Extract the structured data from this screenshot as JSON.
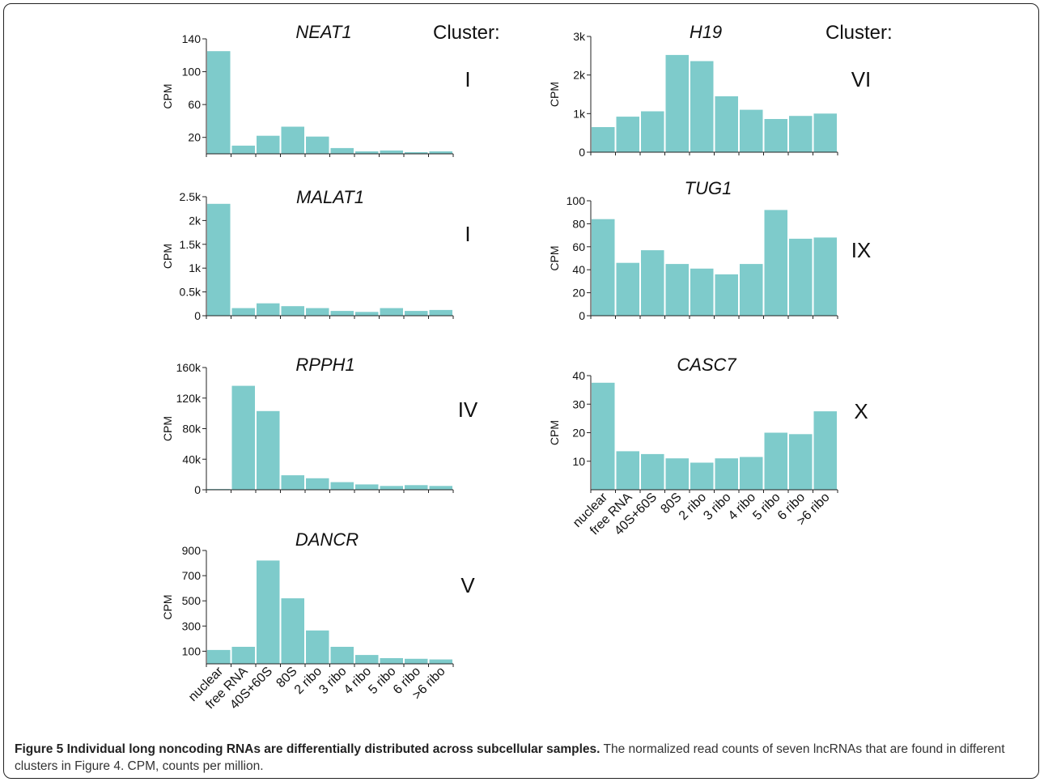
{
  "figure": {
    "cluster_header": "Cluster:",
    "y_axis_label": "CPM",
    "bar_color": "#7ecbcb",
    "categories": [
      "nuclear",
      "free RNA",
      "40S+60S",
      "80S",
      "2 ribo",
      "3 ribo",
      "4 ribo",
      "5 ribo",
      "6 ribo",
      ">6 ribo"
    ]
  },
  "chart_data": [
    {
      "type": "bar",
      "title": "NEAT1",
      "cluster": "I",
      "ylabel": "CPM",
      "ylim": [
        0,
        140
      ],
      "yticks": [
        20,
        60,
        100,
        140
      ],
      "ytick_labels": [
        "20",
        "60",
        "100",
        "140"
      ],
      "categories": [
        "nuclear",
        "free RNA",
        "40S+60S",
        "80S",
        "2 ribo",
        "3 ribo",
        "4 ribo",
        "5 ribo",
        "6 ribo",
        ">6 ribo"
      ],
      "values": [
        125,
        10,
        22,
        33,
        21,
        7,
        3,
        4,
        2,
        3
      ]
    },
    {
      "type": "bar",
      "title": "MALAT1",
      "cluster": "I",
      "ylabel": "CPM",
      "ylim": [
        0,
        2500
      ],
      "yticks": [
        0,
        500,
        1000,
        1500,
        2000,
        2500
      ],
      "ytick_labels": [
        "0",
        "0.5k",
        "1k",
        "1.5k",
        "2k",
        "2.5k"
      ],
      "categories": [
        "nuclear",
        "free RNA",
        "40S+60S",
        "80S",
        "2 ribo",
        "3 ribo",
        "4 ribo",
        "5 ribo",
        "6 ribo",
        ">6 ribo"
      ],
      "values": [
        2350,
        160,
        260,
        200,
        160,
        100,
        80,
        160,
        100,
        120
      ]
    },
    {
      "type": "bar",
      "title": "RPPH1",
      "cluster": "IV",
      "ylabel": "CPM",
      "ylim": [
        0,
        160000
      ],
      "yticks": [
        0,
        40000,
        80000,
        120000,
        160000
      ],
      "ytick_labels": [
        "0",
        "40k",
        "80k",
        "120k",
        "160k"
      ],
      "categories": [
        "nuclear",
        "free RNA",
        "40S+60S",
        "80S",
        "2 ribo",
        "3 ribo",
        "4 ribo",
        "5 ribo",
        "6 ribo",
        ">6 ribo"
      ],
      "values": [
        1000,
        136000,
        103000,
        19000,
        15000,
        10000,
        7000,
        5000,
        6000,
        5000
      ]
    },
    {
      "type": "bar",
      "title": "DANCR",
      "cluster": "V",
      "ylabel": "CPM",
      "ylim": [
        0,
        900
      ],
      "yticks": [
        100,
        300,
        500,
        700,
        900
      ],
      "ytick_labels": [
        "100",
        "300",
        "500",
        "700",
        "900"
      ],
      "categories": [
        "nuclear",
        "free RNA",
        "40S+60S",
        "80S",
        "2 ribo",
        "3 ribo",
        "4 ribo",
        "5 ribo",
        "6 ribo",
        ">6 ribo"
      ],
      "values": [
        110,
        135,
        820,
        520,
        265,
        135,
        70,
        45,
        40,
        35
      ]
    },
    {
      "type": "bar",
      "title": "H19",
      "cluster": "VI",
      "ylabel": "CPM",
      "ylim": [
        0,
        3000
      ],
      "yticks": [
        0,
        1000,
        2000,
        3000
      ],
      "ytick_labels": [
        "0",
        "1k",
        "2k",
        "3k"
      ],
      "categories": [
        "nuclear",
        "free RNA",
        "40S+60S",
        "80S",
        "2 ribo",
        "3 ribo",
        "4 ribo",
        "5 ribo",
        "6 ribo",
        ">6 ribo"
      ],
      "values": [
        650,
        920,
        1060,
        2520,
        2360,
        1450,
        1100,
        860,
        940,
        1000
      ]
    },
    {
      "type": "bar",
      "title": "TUG1",
      "cluster": "IX",
      "ylabel": "CPM",
      "ylim": [
        0,
        100
      ],
      "yticks": [
        0,
        20,
        40,
        60,
        80,
        100
      ],
      "ytick_labels": [
        "0",
        "20",
        "40",
        "60",
        "80",
        "100"
      ],
      "categories": [
        "nuclear",
        "free RNA",
        "40S+60S",
        "80S",
        "2 ribo",
        "3 ribo",
        "4 ribo",
        "5 ribo",
        "6 ribo",
        ">6 ribo"
      ],
      "values": [
        84,
        46,
        57,
        45,
        41,
        36,
        45,
        92,
        67,
        68
      ]
    },
    {
      "type": "bar",
      "title": "CASC7",
      "cluster": "X",
      "ylabel": "CPM",
      "ylim": [
        0,
        40
      ],
      "yticks": [
        10,
        20,
        30,
        40
      ],
      "ytick_labels": [
        "10",
        "20",
        "30",
        "40"
      ],
      "categories": [
        "nuclear",
        "free RNA",
        "40S+60S",
        "80S",
        "2 ribo",
        "3 ribo",
        "4 ribo",
        "5 ribo",
        "6 ribo",
        ">6 ribo"
      ],
      "values": [
        37.5,
        13.5,
        12.5,
        11,
        9.5,
        11,
        11.5,
        20,
        19.5,
        27.5
      ]
    }
  ],
  "caption": {
    "lead": "Figure 5 Individual long noncoding RNAs are differentially distributed across subcellular samples.",
    "body": " The normalized read counts of seven lncRNAs that are found in different clusters in Figure 4. CPM, counts per million."
  }
}
